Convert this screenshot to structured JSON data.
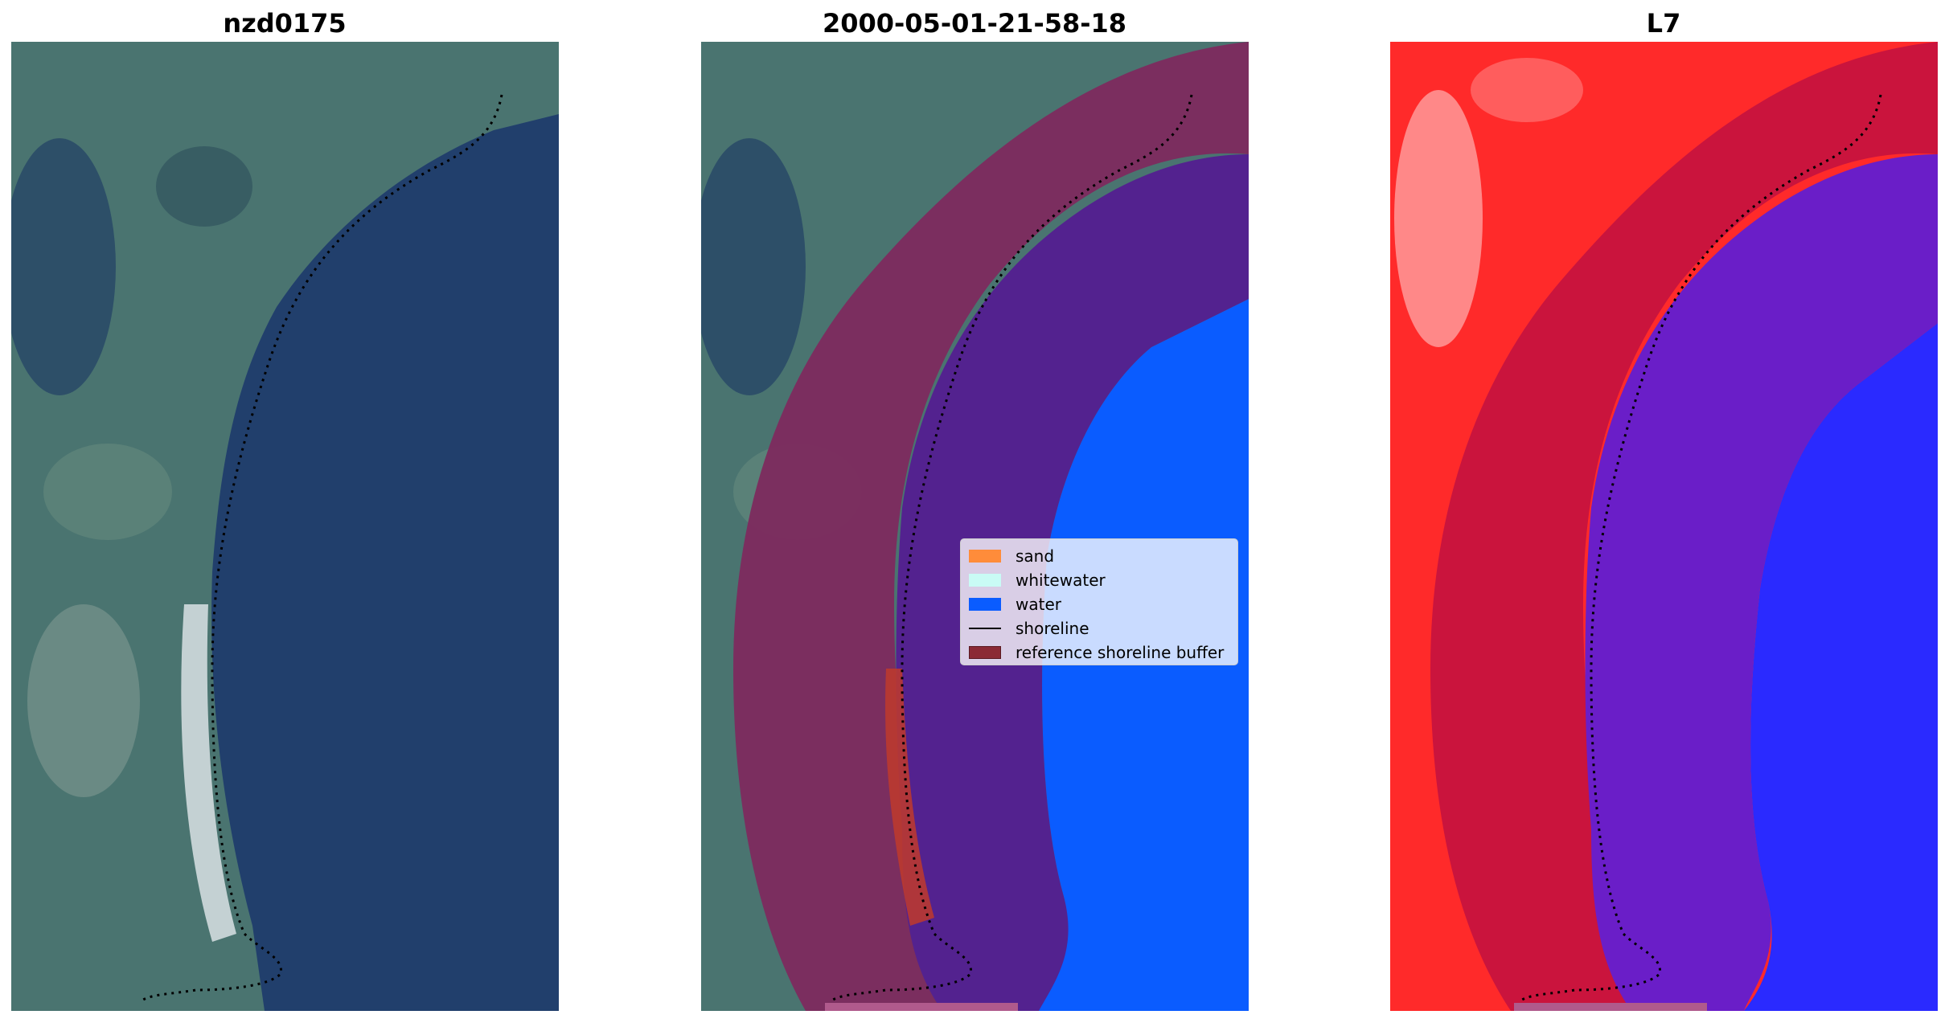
{
  "panels": [
    {
      "title": "nzd0175",
      "image": "true-colour satellite image"
    },
    {
      "title": "2000-05-01-21-58-18",
      "image": "classified image overlay"
    },
    {
      "title": "L7",
      "image": "water index image"
    }
  ],
  "legend": [
    {
      "label": "sand",
      "color": "#ff8c3a",
      "kind": "patch"
    },
    {
      "label": "whitewater",
      "color": "#c9fbf5",
      "kind": "patch"
    },
    {
      "label": "water",
      "color": "#0a5cff",
      "kind": "patch"
    },
    {
      "label": "shoreline",
      "color": "#000000",
      "kind": "line"
    },
    {
      "label": "reference shoreline buffer",
      "color": "#8b2a35",
      "kind": "patch"
    }
  ],
  "colors": {
    "land": "#3f6b6c",
    "sea": "#203f6f",
    "buffer": "#7d2a5e",
    "buffer_water": "#53228f",
    "index_land": "#ff2a2a",
    "index_water": "#2a2aff"
  }
}
